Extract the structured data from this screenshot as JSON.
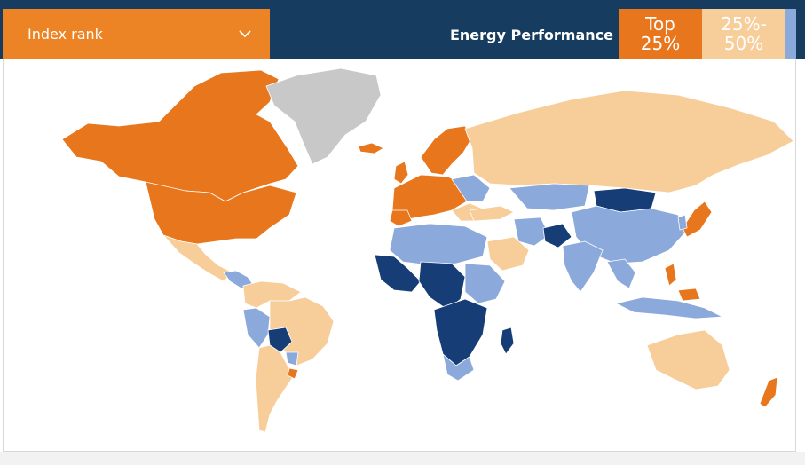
{
  "dropdown": {
    "label": "Index rank"
  },
  "title": "Energy Performance",
  "legend": [
    {
      "line1": "Top",
      "line2": "25%",
      "bg": "#e8761d",
      "fg": "#ffffff"
    },
    {
      "line1": "25%-",
      "line2": "50%",
      "bg": "#f7cd9a",
      "fg": "#ffffff"
    },
    {
      "bg": "#8ca9db"
    }
  ],
  "colors": {
    "header": "#163d5f",
    "dropdown": "#ec8425",
    "top25": "#e8761d",
    "q2": "#f7cd9a",
    "q3": "#8ca9db",
    "q4": "#163d75",
    "no_data": "#c8c8c8"
  },
  "icons": {
    "dropdown": "chevron-down-icon"
  }
}
